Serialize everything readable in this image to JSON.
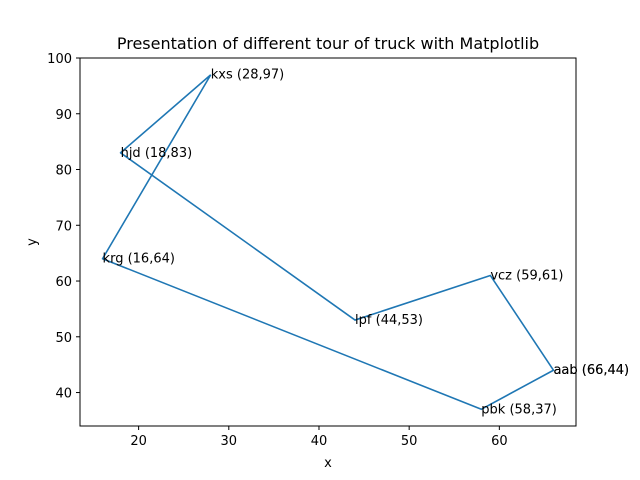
{
  "chart_data": {
    "type": "line",
    "title": "Presentation of different tour of truck with Matplotlib",
    "xlabel": "x",
    "ylabel": "y",
    "xlim": [
      13.5,
      68.5
    ],
    "ylim": [
      34,
      100
    ],
    "xticks": [
      20,
      30,
      40,
      50,
      60
    ],
    "yticks": [
      40,
      50,
      60,
      70,
      80,
      90,
      100
    ],
    "grid": false,
    "color": "#1f77b4",
    "path": [
      {
        "x": 28,
        "y": 97
      },
      {
        "x": 18,
        "y": 83
      },
      {
        "x": 44,
        "y": 53
      },
      {
        "x": 59,
        "y": 61
      },
      {
        "x": 66,
        "y": 44
      },
      {
        "x": 58,
        "y": 37
      },
      {
        "x": 16,
        "y": 64
      },
      {
        "x": 28,
        "y": 97
      }
    ],
    "labels": [
      {
        "text": "kxs (28,97)",
        "x": 28,
        "y": 97
      },
      {
        "text": "hjd (18,83)",
        "x": 18,
        "y": 83
      },
      {
        "text": "lpf (44,53)",
        "x": 44,
        "y": 53
      },
      {
        "text": "vcz (59,61)",
        "x": 59,
        "y": 61
      },
      {
        "text": "aab (66,44)",
        "x": 66,
        "y": 44
      },
      {
        "text": "aab (66,44)",
        "x": 66,
        "y": 44
      },
      {
        "text": "pbk (58,37)",
        "x": 58,
        "y": 37
      },
      {
        "text": "krg (16,64)",
        "x": 16,
        "y": 64
      }
    ]
  }
}
